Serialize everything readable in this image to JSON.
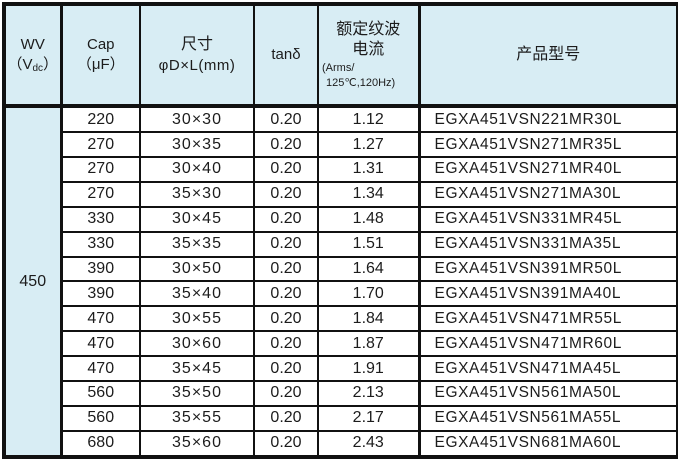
{
  "table": {
    "header_bg": "#d8edf4",
    "border_color": "#111111",
    "text_color": "#1c1c1c",
    "field_order": [
      "cap",
      "size",
      "tan",
      "ripple",
      "model"
    ],
    "header": {
      "wv": {
        "line1": "WV",
        "line2_pre": "（V",
        "line2_sub": "dc",
        "line2_post": "）"
      },
      "cap": {
        "line1": "Cap",
        "line2": "（μF）"
      },
      "size": {
        "line1": "尺寸",
        "line2": "φD×L(mm)"
      },
      "tan": {
        "label": "tanδ"
      },
      "ripple": {
        "line1": "额定纹波",
        "line2": "电流",
        "line3": "(Arms/",
        "line4": "125℃,120Hz)"
      },
      "model": {
        "label": "产品型号"
      }
    },
    "wv_value": "450",
    "rows": [
      {
        "cap": "220",
        "size": "30×30",
        "tan": "0.20",
        "ripple": "1.12",
        "model": "EGXA451VSN221MR30L"
      },
      {
        "cap": "270",
        "size": "30×35",
        "tan": "0.20",
        "ripple": "1.27",
        "model": "EGXA451VSN271MR35L"
      },
      {
        "cap": "270",
        "size": "30×40",
        "tan": "0.20",
        "ripple": "1.31",
        "model": "EGXA451VSN271MR40L"
      },
      {
        "cap": "270",
        "size": "35×30",
        "tan": "0.20",
        "ripple": "1.34",
        "model": "EGXA451VSN271MA30L"
      },
      {
        "cap": "330",
        "size": "30×45",
        "tan": "0.20",
        "ripple": "1.48",
        "model": "EGXA451VSN331MR45L"
      },
      {
        "cap": "330",
        "size": "35×35",
        "tan": "0.20",
        "ripple": "1.51",
        "model": "EGXA451VSN331MA35L"
      },
      {
        "cap": "390",
        "size": "30×50",
        "tan": "0.20",
        "ripple": "1.64",
        "model": "EGXA451VSN391MR50L"
      },
      {
        "cap": "390",
        "size": "35×40",
        "tan": "0.20",
        "ripple": "1.70",
        "model": "EGXA451VSN391MA40L"
      },
      {
        "cap": "470",
        "size": "30×55",
        "tan": "0.20",
        "ripple": "1.84",
        "model": "EGXA451VSN471MR55L"
      },
      {
        "cap": "470",
        "size": "30×60",
        "tan": "0.20",
        "ripple": "1.87",
        "model": "EGXA451VSN471MR60L"
      },
      {
        "cap": "470",
        "size": "35×45",
        "tan": "0.20",
        "ripple": "1.91",
        "model": "EGXA451VSN471MA45L"
      },
      {
        "cap": "560",
        "size": "35×50",
        "tan": "0.20",
        "ripple": "2.13",
        "model": "EGXA451VSN561MA50L"
      },
      {
        "cap": "560",
        "size": "35×55",
        "tan": "0.20",
        "ripple": "2.17",
        "model": "EGXA451VSN561MA55L"
      },
      {
        "cap": "680",
        "size": "35×60",
        "tan": "0.20",
        "ripple": "2.43",
        "model": "EGXA451VSN681MA60L"
      }
    ]
  }
}
